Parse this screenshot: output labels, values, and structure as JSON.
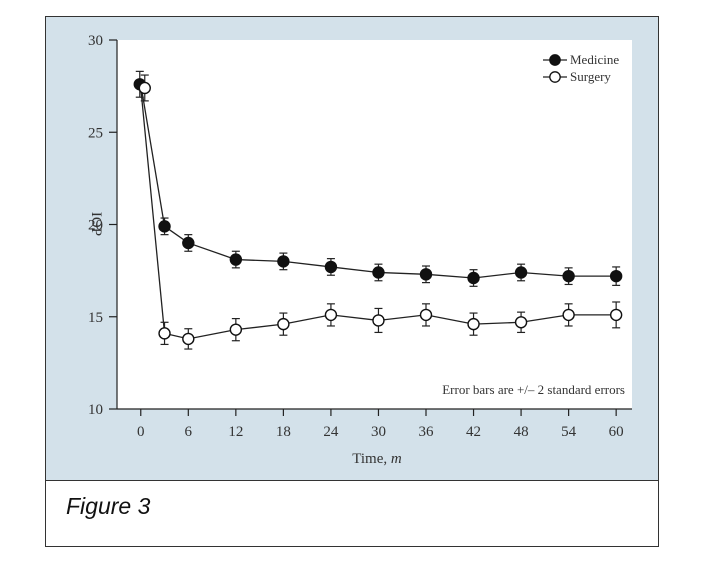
{
  "caption": "Figure 3",
  "chart_data": {
    "type": "line",
    "title": "",
    "xlabel": "Time,",
    "xlabel_unit": "m",
    "ylabel": "IOP",
    "xlim": [
      -3,
      62
    ],
    "ylim": [
      10,
      30
    ],
    "xticks": [
      0,
      6,
      12,
      18,
      24,
      30,
      36,
      42,
      48,
      54,
      60
    ],
    "yticks": [
      10,
      15,
      20,
      25,
      30
    ],
    "annotation": "Error bars are +/– 2 standard errors",
    "legend_position": "top-right",
    "series": [
      {
        "name": "Medicine",
        "marker": "filled-circle",
        "x": [
          0,
          3,
          6,
          12,
          18,
          24,
          30,
          36,
          42,
          48,
          54,
          60
        ],
        "y": [
          27.6,
          19.9,
          19.0,
          18.1,
          18.0,
          17.7,
          17.4,
          17.3,
          17.1,
          17.4,
          17.2,
          17.2
        ],
        "err": [
          0.7,
          0.45,
          0.45,
          0.45,
          0.45,
          0.45,
          0.45,
          0.45,
          0.45,
          0.45,
          0.45,
          0.5
        ]
      },
      {
        "name": "Surgery",
        "marker": "open-circle",
        "x": [
          0,
          3,
          6,
          12,
          18,
          24,
          30,
          36,
          42,
          48,
          54,
          60
        ],
        "y": [
          27.4,
          14.1,
          13.8,
          14.3,
          14.6,
          15.1,
          14.8,
          15.1,
          14.6,
          14.7,
          15.1,
          15.1
        ],
        "err": [
          0.7,
          0.6,
          0.55,
          0.6,
          0.6,
          0.6,
          0.65,
          0.6,
          0.6,
          0.55,
          0.6,
          0.7
        ]
      }
    ]
  }
}
